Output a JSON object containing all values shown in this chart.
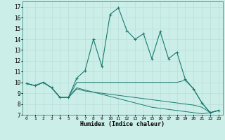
{
  "xlabel": "Humidex (Indice chaleur)",
  "xlim": [
    -0.5,
    23.5
  ],
  "ylim": [
    7,
    17.5
  ],
  "yticks": [
    7,
    8,
    9,
    10,
    11,
    12,
    13,
    14,
    15,
    16,
    17
  ],
  "xticks": [
    0,
    1,
    2,
    3,
    4,
    5,
    6,
    7,
    8,
    9,
    10,
    11,
    12,
    13,
    14,
    15,
    16,
    17,
    18,
    19,
    20,
    21,
    22,
    23
  ],
  "bg_color": "#cceee9",
  "line_color": "#1a7a6e",
  "grid_color": "#b8ddd8",
  "series_main": [
    9.9,
    9.7,
    10.0,
    9.5,
    8.6,
    8.6,
    10.4,
    11.1,
    14.0,
    11.5,
    16.3,
    16.9,
    14.8,
    14.0,
    14.5,
    12.2,
    14.7,
    12.2,
    12.8,
    10.3,
    9.4,
    8.1,
    7.2,
    7.4
  ],
  "series_line1": [
    9.9,
    9.7,
    10.0,
    9.5,
    8.6,
    8.6,
    10.0,
    10.0,
    10.0,
    10.0,
    10.0,
    10.0,
    10.0,
    10.0,
    10.0,
    10.0,
    10.0,
    10.0,
    10.0,
    10.2,
    9.4,
    8.1,
    7.2,
    7.4
  ],
  "series_line2": [
    9.9,
    9.7,
    10.0,
    9.5,
    8.6,
    8.6,
    9.4,
    9.2,
    9.1,
    9.0,
    8.9,
    8.8,
    8.7,
    8.6,
    8.5,
    8.4,
    8.3,
    8.2,
    8.1,
    8.0,
    7.9,
    7.7,
    7.2,
    7.4
  ],
  "series_line3": [
    9.9,
    9.7,
    10.0,
    9.5,
    8.6,
    8.6,
    9.5,
    9.3,
    9.1,
    8.9,
    8.7,
    8.5,
    8.3,
    8.1,
    7.9,
    7.7,
    7.6,
    7.5,
    7.4,
    7.3,
    7.2,
    7.1,
    7.2,
    7.4
  ]
}
